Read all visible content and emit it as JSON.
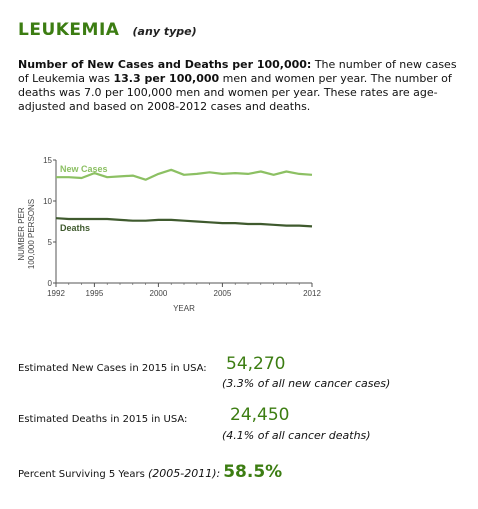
{
  "header": {
    "title": "LEUKEMIA",
    "subtitle": "(any type)"
  },
  "description": {
    "heading": "Number of New Cases and Deaths per 100,000:",
    "text1": " The number of new cases of Leukemia was ",
    "rate": "13.3 per 100,000",
    "text2": " men and women per year. The number of deaths was 7.0 per 100,000 men and women per year. These rates are age-adjusted and based on 2008-2012 cases and deaths."
  },
  "colors": {
    "accent": "#3c7d12",
    "new_cases_line": "#8cc063",
    "deaths_line": "#3f5a2e",
    "axis": "#555555"
  },
  "chart_data": {
    "type": "line",
    "xlabel": "YEAR",
    "ylabel_line1": "NUMBER PER",
    "ylabel_line2": "100,000 PERSONS",
    "xlim": [
      1992,
      2012
    ],
    "ylim": [
      0,
      15
    ],
    "x_ticks": [
      1992,
      1995,
      2000,
      2005,
      2012
    ],
    "y_ticks": [
      0,
      5,
      10,
      15
    ],
    "x": [
      1992,
      1993,
      1994,
      1995,
      1996,
      1997,
      1998,
      1999,
      2000,
      2001,
      2002,
      2003,
      2004,
      2005,
      2006,
      2007,
      2008,
      2009,
      2010,
      2011,
      2012
    ],
    "series": [
      {
        "name": "New Cases",
        "values": [
          12.9,
          12.9,
          12.8,
          13.4,
          12.9,
          13.0,
          13.1,
          12.6,
          13.3,
          13.8,
          13.2,
          13.3,
          13.5,
          13.3,
          13.4,
          13.3,
          13.6,
          13.2,
          13.6,
          13.3,
          13.2
        ]
      },
      {
        "name": "Deaths",
        "values": [
          7.9,
          7.8,
          7.8,
          7.8,
          7.8,
          7.7,
          7.6,
          7.6,
          7.7,
          7.7,
          7.6,
          7.5,
          7.4,
          7.3,
          7.3,
          7.2,
          7.2,
          7.1,
          7.0,
          7.0,
          6.9
        ]
      }
    ]
  },
  "stats": {
    "new_cases_label": "Estimated New Cases in 2015 in USA:",
    "new_cases_value": "54,270",
    "new_cases_sub": "(3.3% of all new cancer cases)",
    "deaths_label": "Estimated Deaths in 2015 in USA:",
    "deaths_value": "24,450",
    "deaths_sub": "(4.1% of all cancer deaths)",
    "survival_label": "Percent Surviving  5 Years ",
    "survival_period": "(2005-2011):",
    "survival_value": "58.5%"
  }
}
